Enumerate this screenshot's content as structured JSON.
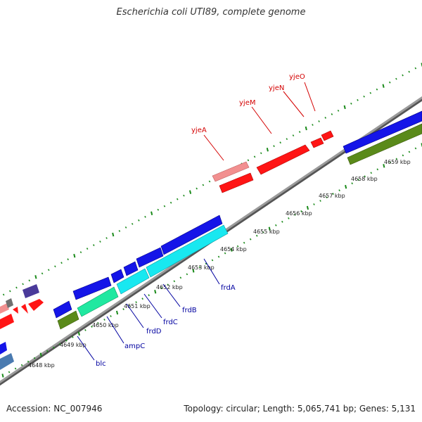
{
  "title": "Escherichia coli UTI89, complete genome",
  "footer": {
    "accession": "Accession: NC_007946",
    "summary": "Topology: circular; Length: 5,065,741 bp; Genes: 5,131"
  },
  "colors": {
    "backbone": "#808080",
    "tick": "#1a8a1a",
    "red": "#ff1111",
    "pink": "#f08a8a",
    "blue": "#1010e0",
    "cyan": "#10e8f0",
    "teal_green": "#20e8a0",
    "olive": "#5a8a1a",
    "purple": "#4a3a9a",
    "steel_blue": "#4a7ab0",
    "gray": "#707070"
  },
  "kbp_labels": [
    "4648 kbp",
    "4649 kbp",
    "4650 kbp",
    "4651 kbp",
    "4652 kbp",
    "4653 kbp",
    "4654 kbp",
    "4655 kbp",
    "4656 kbp",
    "4657 kbp",
    "4658 kbp",
    "4659 kbp"
  ],
  "gene_labels_top": [
    "yjeA",
    "yjeM",
    "yjeN",
    "yjeO"
  ],
  "gene_labels_bottom": [
    "blc",
    "ampC",
    "frdD",
    "frdC",
    "frdB",
    "frdA"
  ]
}
